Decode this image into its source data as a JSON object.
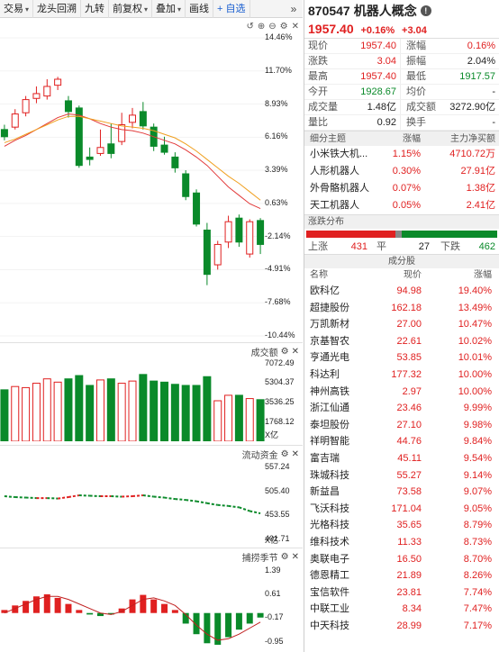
{
  "toolbar": {
    "items": [
      {
        "label": "交易",
        "caret": true
      },
      {
        "label": "龙头回溯",
        "caret": false
      },
      {
        "label": "九转",
        "caret": false
      },
      {
        "label": "前复权",
        "caret": true
      },
      {
        "label": "叠加",
        "caret": true
      },
      {
        "label": "画线",
        "caret": false
      }
    ],
    "add_label": "+ 自选",
    "more_label": "»"
  },
  "price_axis": [
    "14.46%",
    "11.70%",
    "8.93%",
    "6.16%",
    "3.39%",
    "0.63%",
    "-2.14%",
    "-4.91%",
    "-7.68%",
    "-10.44%"
  ],
  "volume_panel": {
    "label": "成交额",
    "ticks": [
      "7072.49",
      "5304.37",
      "3536.25",
      "1768.12",
      "X亿"
    ]
  },
  "flow_panel": {
    "label": "流动资金",
    "ticks": [
      "557.24",
      "505.40",
      "453.55",
      "401.71",
      "X亿"
    ]
  },
  "osc_panel": {
    "label": "捕捞季节",
    "ticks": [
      "1.39",
      "0.61",
      "-0.17",
      "-0.95"
    ]
  },
  "chart_data": {
    "type": "candlestick",
    "y_unit": "%",
    "ylim": [
      -10.44,
      14.46
    ],
    "candles": [
      {
        "o": 6.8,
        "c": 6.2,
        "h": 7.2,
        "l": 5.9
      },
      {
        "o": 7.0,
        "c": 8.1,
        "h": 8.5,
        "l": 6.8
      },
      {
        "o": 8.2,
        "c": 9.3,
        "h": 9.6,
        "l": 7.9
      },
      {
        "o": 9.4,
        "c": 9.8,
        "h": 10.4,
        "l": 9.0
      },
      {
        "o": 9.6,
        "c": 10.4,
        "h": 11.0,
        "l": 9.3
      },
      {
        "o": 10.5,
        "c": 11.0,
        "h": 11.2,
        "l": 10.1
      },
      {
        "o": 9.2,
        "c": 8.3,
        "h": 9.6,
        "l": 7.8
      },
      {
        "o": 8.6,
        "c": 3.8,
        "h": 8.8,
        "l": 3.6
      },
      {
        "o": 4.5,
        "c": 4.3,
        "h": 5.3,
        "l": 3.8
      },
      {
        "o": 4.8,
        "c": 5.3,
        "h": 6.8,
        "l": 4.6
      },
      {
        "o": 5.6,
        "c": 4.8,
        "h": 7.3,
        "l": 4.4
      },
      {
        "o": 5.8,
        "c": 7.2,
        "h": 8.2,
        "l": 5.5
      },
      {
        "o": 7.4,
        "c": 8.0,
        "h": 8.6,
        "l": 6.9
      },
      {
        "o": 8.3,
        "c": 7.1,
        "h": 9.1,
        "l": 6.8
      },
      {
        "o": 7.0,
        "c": 5.4,
        "h": 7.3,
        "l": 5.0
      },
      {
        "o": 5.5,
        "c": 4.9,
        "h": 6.2,
        "l": 4.7
      },
      {
        "o": 4.5,
        "c": 3.6,
        "h": 4.9,
        "l": 3.2
      },
      {
        "o": 3.1,
        "c": 1.2,
        "h": 3.4,
        "l": 0.9
      },
      {
        "o": 1.5,
        "c": -1.1,
        "h": 1.8,
        "l": -1.3
      },
      {
        "o": -1.6,
        "c": -5.3,
        "h": -1.0,
        "l": -6.2
      },
      {
        "o": -4.5,
        "c": -2.8,
        "h": -2.5,
        "l": -4.9
      },
      {
        "o": -2.6,
        "c": -0.9,
        "h": -0.4,
        "l": -3.1
      },
      {
        "o": -0.6,
        "c": -2.6,
        "h": -0.3,
        "l": -3.0
      },
      {
        "o": -3.6,
        "c": -0.9,
        "h": -0.7,
        "l": -3.9
      },
      {
        "o": -0.8,
        "c": -2.8,
        "h": -0.6,
        "l": -3.6
      }
    ],
    "ma1": [
      5.4,
      5.9,
      6.3,
      6.8,
      7.3,
      7.8,
      8.1,
      8.0,
      7.7,
      7.3,
      7.0,
      6.8,
      6.7,
      6.5,
      6.2,
      5.9,
      5.6,
      5.1,
      4.5,
      3.8,
      2.9,
      2.0,
      1.3,
      0.6,
      0.2
    ],
    "ma2": [
      5.7,
      6.0,
      6.4,
      6.8,
      7.2,
      7.6,
      7.9,
      7.9,
      7.7,
      7.5,
      7.3,
      7.1,
      7.0,
      6.9,
      6.7,
      6.4,
      6.1,
      5.6,
      5.0,
      4.3,
      3.6,
      2.9,
      2.3,
      1.6,
      0.9
    ],
    "volume": [
      4700,
      5000,
      4900,
      5300,
      5700,
      5400,
      5700,
      6000,
      5100,
      5600,
      5700,
      5300,
      5500,
      6100,
      5500,
      5400,
      5200,
      5100,
      5100,
      5900,
      3700,
      4200,
      4200,
      3900,
      3800
    ],
    "volume_ylim": [
      0,
      7072.49
    ],
    "flow": [
      495,
      493,
      492,
      491,
      491,
      490,
      493,
      497,
      496,
      495,
      495,
      494,
      495,
      497,
      494,
      492,
      489,
      487,
      484,
      480,
      476,
      474,
      471,
      463,
      458
    ],
    "flow_ylim": [
      401.71,
      557.24
    ],
    "osc": [
      0.1,
      0.25,
      0.4,
      0.55,
      0.62,
      0.5,
      0.3,
      0.1,
      -0.05,
      -0.1,
      -0.05,
      0.15,
      0.45,
      0.6,
      0.45,
      0.3,
      0.1,
      -0.35,
      -0.7,
      -1.0,
      -1.05,
      -0.8,
      -0.55,
      -0.35,
      -0.15
    ],
    "osc_line": [
      0.0,
      0.15,
      0.3,
      0.45,
      0.55,
      0.55,
      0.45,
      0.3,
      0.15,
      0.0,
      -0.05,
      0.05,
      0.25,
      0.45,
      0.5,
      0.4,
      0.25,
      -0.05,
      -0.4,
      -0.7,
      -0.9,
      -0.85,
      -0.7,
      -0.5,
      -0.3
    ],
    "osc_ylim": [
      -1.2,
      1.6
    ]
  },
  "quote": {
    "code": "870547",
    "name": "机器人概念",
    "price": "1957.40",
    "change_pct": "+0.16%",
    "change": "+3.04",
    "rows": [
      {
        "k": "现价",
        "v": "1957.40",
        "vc": "red",
        "k2": "涨幅",
        "v2": "0.16%",
        "v2c": "red"
      },
      {
        "k": "涨跌",
        "v": "3.04",
        "vc": "red",
        "k2": "振幅",
        "v2": "2.04%",
        "v2c": ""
      },
      {
        "k": "最高",
        "v": "1957.40",
        "vc": "red",
        "k2": "最低",
        "v2": "1917.57",
        "v2c": "green"
      },
      {
        "k": "今开",
        "v": "1928.67",
        "vc": "green",
        "k2": "均价",
        "v2": "-",
        "v2c": ""
      },
      {
        "k": "成交量",
        "v": "1.48亿",
        "vc": "",
        "k2": "成交额",
        "v2": "3272.90亿",
        "v2c": ""
      },
      {
        "k": "量比",
        "v": "0.92",
        "vc": "",
        "k2": "换手",
        "v2": "-",
        "v2c": ""
      }
    ]
  },
  "themes": {
    "header": {
      "name": "细分主题",
      "pct": "涨幅",
      "flow": "主力净买额"
    },
    "items": [
      {
        "name": "小米铁大机...",
        "pct": "1.15%",
        "flow": "4710.72万"
      },
      {
        "name": "人形机器人",
        "pct": "0.30%",
        "flow": "27.91亿"
      },
      {
        "name": "外骨骼机器人",
        "pct": "0.07%",
        "flow": "1.38亿"
      },
      {
        "name": "天工机器人",
        "pct": "0.05%",
        "flow": "2.41亿"
      }
    ]
  },
  "distribution": {
    "title": "涨跌分布",
    "up_label": "上涨",
    "up": "431",
    "flat_label": "平",
    "flat": "27",
    "down_label": "下跌",
    "down": "462"
  },
  "stocks": {
    "title": "成分股",
    "cols": {
      "name": "名称",
      "price": "现价",
      "chg": "涨幅"
    },
    "items": [
      {
        "name": "欧科亿",
        "price": "94.98",
        "chg": "19.40%"
      },
      {
        "name": "超捷股份",
        "price": "162.18",
        "chg": "13.49%"
      },
      {
        "name": "万凯新材",
        "price": "27.00",
        "chg": "10.47%"
      },
      {
        "name": "京基智农",
        "price": "22.61",
        "chg": "10.02%"
      },
      {
        "name": "亨通光电",
        "price": "53.85",
        "chg": "10.01%"
      },
      {
        "name": "科达利",
        "price": "177.32",
        "chg": "10.00%"
      },
      {
        "name": "神州高铁",
        "price": "2.97",
        "chg": "10.00%"
      },
      {
        "name": "浙江仙通",
        "price": "23.46",
        "chg": "9.99%"
      },
      {
        "name": "泰坦股份",
        "price": "27.10",
        "chg": "9.98%"
      },
      {
        "name": "祥明智能",
        "price": "44.76",
        "chg": "9.84%"
      },
      {
        "name": "富吉瑞",
        "price": "45.11",
        "chg": "9.54%"
      },
      {
        "name": "珠城科技",
        "price": "55.27",
        "chg": "9.14%"
      },
      {
        "name": "新益昌",
        "price": "73.58",
        "chg": "9.07%"
      },
      {
        "name": "飞沃科技",
        "price": "171.04",
        "chg": "9.05%"
      },
      {
        "name": "光格科技",
        "price": "35.65",
        "chg": "8.79%"
      },
      {
        "name": "维科技术",
        "price": "11.33",
        "chg": "8.73%"
      },
      {
        "name": "奥联电子",
        "price": "16.50",
        "chg": "8.70%"
      },
      {
        "name": "德恩精工",
        "price": "21.89",
        "chg": "8.26%"
      },
      {
        "name": "宝信软件",
        "price": "23.81",
        "chg": "7.74%"
      },
      {
        "name": "中联工业",
        "price": "8.34",
        "chg": "7.47%"
      },
      {
        "name": "中天科技",
        "price": "28.99",
        "chg": "7.17%"
      }
    ]
  },
  "colors": {
    "up": "#e02020",
    "down": "#0a8a2a",
    "ma1": "#e23a3a",
    "ma2": "#f0a020",
    "axis": "#222"
  }
}
